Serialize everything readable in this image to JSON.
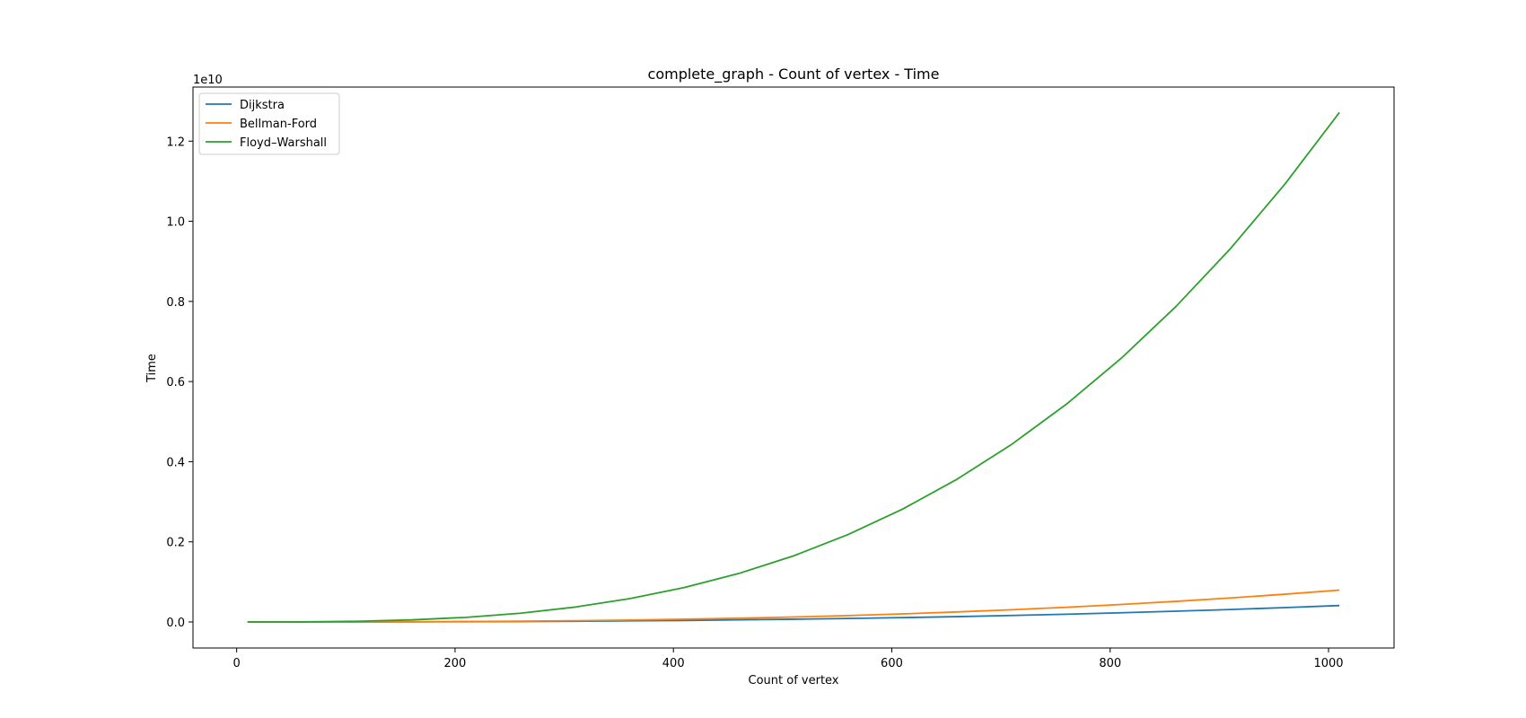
{
  "chart_data": {
    "type": "line",
    "title": "complete_graph - Count of vertex - Time",
    "xlabel": "Count of vertex",
    "ylabel": "Time",
    "y_offset_label": "1e10",
    "xlim": [
      -40,
      1060
    ],
    "ylim": [
      -0.065,
      1.335
    ],
    "x_ticks": [
      0,
      200,
      400,
      600,
      800,
      1000
    ],
    "x_tick_labels": [
      "0",
      "200",
      "400",
      "600",
      "800",
      "1000"
    ],
    "y_ticks": [
      0.0,
      0.2,
      0.4,
      0.6,
      0.8,
      1.0,
      1.2
    ],
    "y_tick_labels": [
      "0.0",
      "0.2",
      "0.4",
      "0.6",
      "0.8",
      "1.0",
      "1.2"
    ],
    "grid": false,
    "legend_position": "top-left",
    "x": [
      10,
      60,
      110,
      160,
      210,
      260,
      310,
      360,
      410,
      460,
      510,
      560,
      610,
      660,
      710,
      760,
      810,
      860,
      910,
      960,
      1010
    ],
    "series": [
      {
        "name": "Dijkstra",
        "color": "#1f77b4",
        "values": [
          0.0,
          0.0,
          0.0001,
          0.0003,
          0.0006,
          0.0011,
          0.0018,
          0.0027,
          0.0038,
          0.0052,
          0.0068,
          0.0087,
          0.0109,
          0.0133,
          0.0162,
          0.0193,
          0.0229,
          0.0268,
          0.0311,
          0.0358,
          0.041
        ]
      },
      {
        "name": "Bellman-Ford",
        "color": "#ff7f0e",
        "values": [
          0.0,
          0.0,
          0.0002,
          0.0005,
          0.0011,
          0.0019,
          0.0031,
          0.0047,
          0.0068,
          0.0093,
          0.0123,
          0.0159,
          0.0201,
          0.025,
          0.0305,
          0.0367,
          0.0437,
          0.0514,
          0.0599,
          0.0693,
          0.0795
        ]
      },
      {
        "name": "Floyd–Warshall",
        "color": "#2ca02c",
        "values": [
          0.0,
          0.0003,
          0.0017,
          0.0051,
          0.0115,
          0.0219,
          0.0371,
          0.0581,
          0.0858,
          0.1211,
          0.1649,
          0.2182,
          0.2818,
          0.3566,
          0.4436,
          0.5437,
          0.6577,
          0.7866,
          0.9313,
          1.0927,
          1.2716
        ]
      }
    ]
  }
}
